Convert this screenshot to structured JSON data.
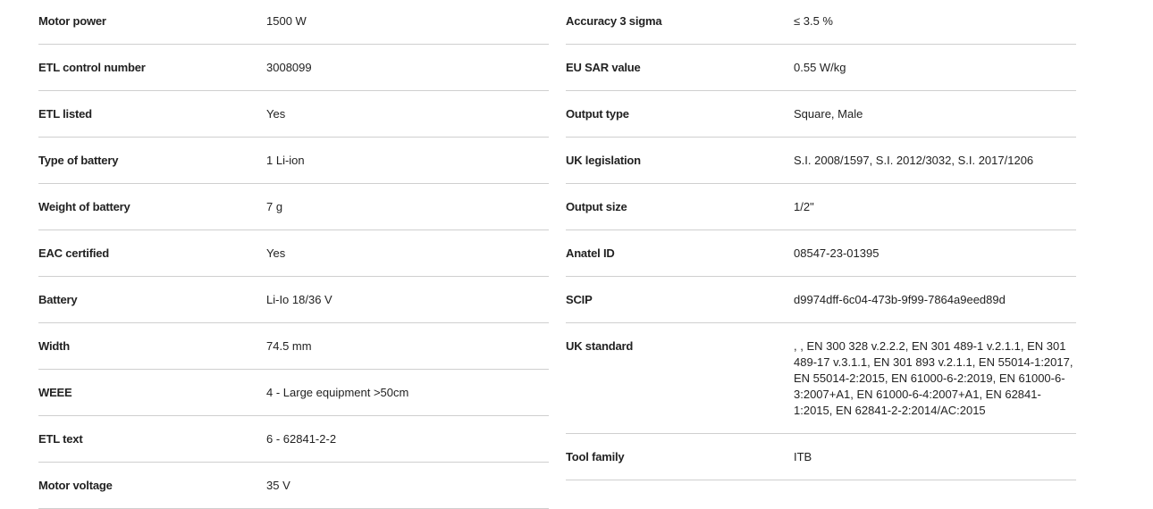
{
  "left": [
    {
      "label": "Motor power",
      "value": "1500 W"
    },
    {
      "label": "ETL control number",
      "value": "3008099"
    },
    {
      "label": "ETL listed",
      "value": "Yes"
    },
    {
      "label": "Type of battery",
      "value": "1 Li-ion"
    },
    {
      "label": "Weight of battery",
      "value": "7 g"
    },
    {
      "label": "EAC certified",
      "value": "Yes"
    },
    {
      "label": "Battery",
      "value": "Li-Io 18/36 V"
    },
    {
      "label": "Width",
      "value": "74.5 mm"
    },
    {
      "label": "WEEE",
      "value": "4 - Large equipment >50cm"
    },
    {
      "label": "ETL text",
      "value": "6 - 62841-2-2"
    },
    {
      "label": "Motor voltage",
      "value": "35 V"
    }
  ],
  "right": [
    {
      "label": "Accuracy 3 sigma",
      "value": "≤ 3.5 %"
    },
    {
      "label": "EU SAR value",
      "value": "0.55 W/kg"
    },
    {
      "label": "Output type",
      "value": "Square, Male"
    },
    {
      "label": "UK legislation",
      "value": "S.I. 2008/1597, S.I. 2012/3032, S.I. 2017/1206"
    },
    {
      "label": "Output size",
      "value": "1/2\""
    },
    {
      "label": "Anatel ID",
      "value": "08547-23-01395"
    },
    {
      "label": "SCIP",
      "value": "d9974dff-6c04-473b-9f99-7864a9eed89d"
    },
    {
      "label": "UK standard",
      "value": ", , EN 300 328 v.2.2.2, EN 301 489-1 v.2.1.1, EN 301 489-17 v.3.1.1, EN 301 893 v.2.1.1, EN 55014-1:2017, EN 55014-2:2015, EN 61000-6-2:2019, EN 61000-6-3:2007+A1, EN 61000-6-4:2007+A1, EN 62841-1:2015, EN 62841-2-2:2014/AC:2015"
    },
    {
      "label": "Tool family",
      "value": "ITB"
    }
  ]
}
